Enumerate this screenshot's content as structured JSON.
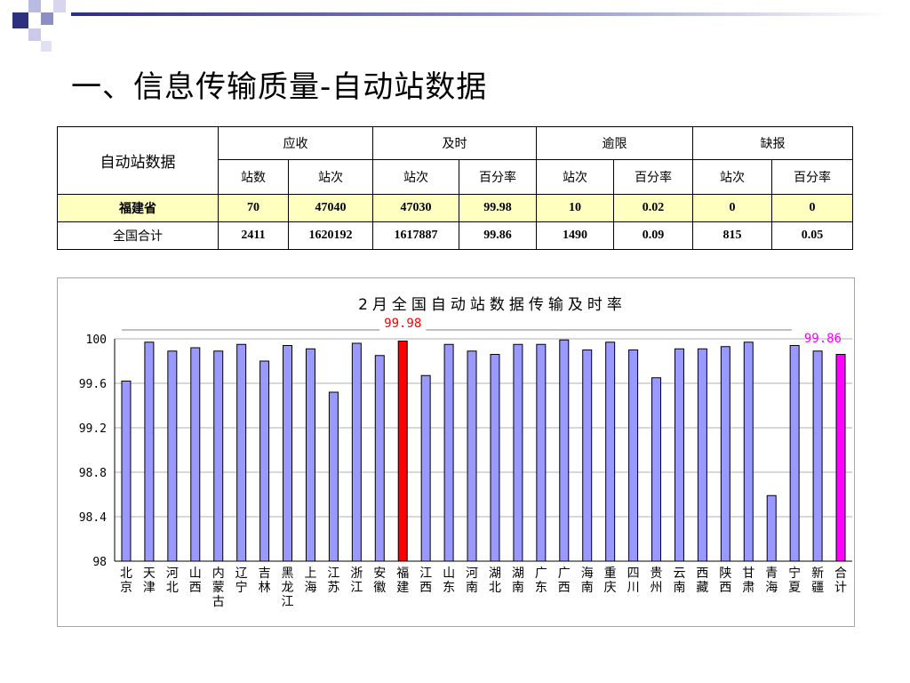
{
  "slide": {
    "title": "一、信息传输质量-自动站数据"
  },
  "table": {
    "corner": "自动站数据",
    "groups": [
      "应收",
      "及时",
      "逾限",
      "缺报"
    ],
    "subheaders": [
      "站数",
      "站次",
      "站次",
      "百分率",
      "站次",
      "百分率",
      "站次",
      "百分率"
    ],
    "rows": [
      {
        "label": "福建省",
        "cells": [
          "70",
          "47040",
          "47030",
          "99.98",
          "10",
          "0.02",
          "0",
          "0"
        ]
      },
      {
        "label": "全国合计",
        "cells": [
          "2411",
          "1620192",
          "1617887",
          "99.86",
          "1490",
          "0.09",
          "815",
          "0.05"
        ]
      }
    ]
  },
  "chart_data": {
    "type": "bar",
    "title": "2月全国自动站数据传输及时率",
    "categories": [
      "北京",
      "天津",
      "河北",
      "山西",
      "内蒙古",
      "辽宁",
      "吉林",
      "黑龙江",
      "上海",
      "江苏",
      "浙江",
      "安徽",
      "福建",
      "江西",
      "山东",
      "河南",
      "湖北",
      "湖南",
      "广东",
      "广西",
      "海南",
      "重庆",
      "四川",
      "贵州",
      "云南",
      "西藏",
      "陕西",
      "甘肃",
      "青海",
      "宁夏",
      "新疆",
      "合计"
    ],
    "values": [
      99.62,
      99.97,
      99.89,
      99.92,
      99.89,
      99.95,
      99.8,
      99.94,
      99.91,
      99.52,
      99.96,
      99.85,
      99.98,
      99.67,
      99.95,
      99.89,
      99.86,
      99.95,
      99.95,
      99.99,
      99.9,
      99.97,
      99.9,
      99.65,
      99.91,
      99.91,
      99.93,
      99.97,
      98.59,
      99.94,
      99.89,
      99.86
    ],
    "ylim": [
      98,
      100
    ],
    "yticks": [
      "98",
      "98.4",
      "98.8",
      "99.2",
      "99.6",
      "100"
    ],
    "grid": true,
    "colors": {
      "default": "#9999ff",
      "highlight": "#ff0000",
      "total": "#ff00ff"
    },
    "highlight_category": "福建",
    "total_category": "合计",
    "annotations": [
      {
        "category": "福建",
        "text": "99.98",
        "color": "#ff0000"
      },
      {
        "category": "合计",
        "text": "99.86",
        "color": "#ff00ff"
      }
    ]
  }
}
